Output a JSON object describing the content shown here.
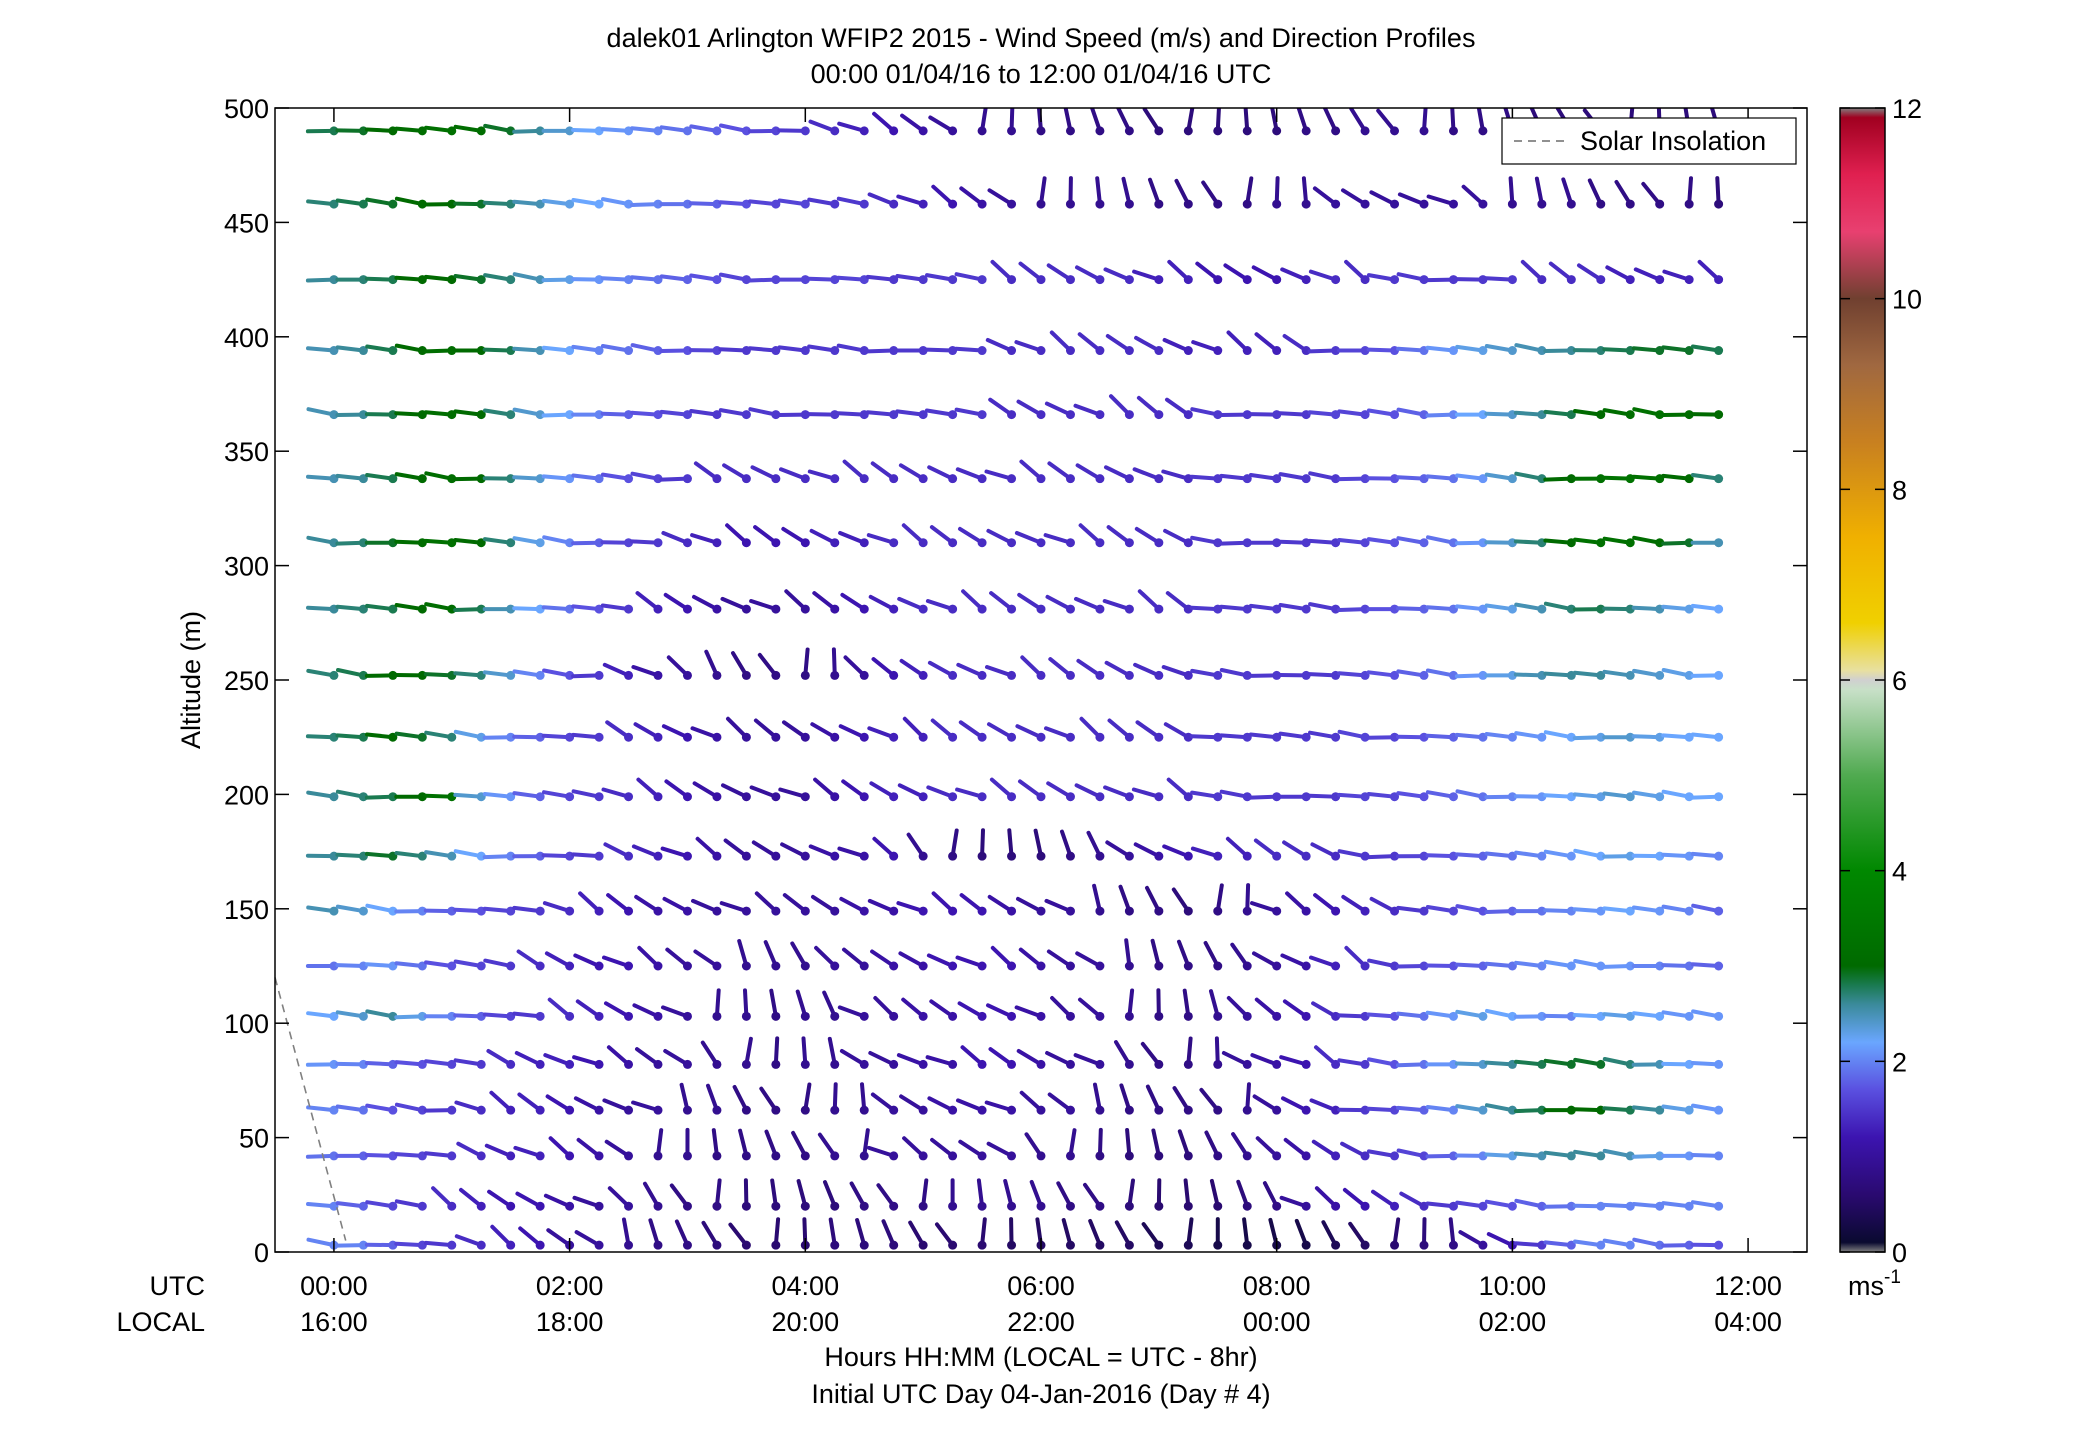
{
  "chart_data": {
    "type": "wind_barb_profile",
    "title_line1": "dalek01 Arlington WFIP2 2015 - Wind Speed (m/s) and Direction Profiles",
    "title_line2": "00:00 01/04/16 to 12:00 01/04/16  UTC",
    "ylabel": "Altitude (m)",
    "ylim": [
      0,
      500
    ],
    "y_ticks": [
      "0",
      "50",
      "100",
      "150",
      "200",
      "250",
      "300",
      "350",
      "400",
      "450",
      "500"
    ],
    "xlim_hours": [
      -0.5,
      12.5
    ],
    "utc_label": "UTC",
    "local_label": "LOCAL",
    "utc_ticks": [
      "00:00",
      "02:00",
      "04:00",
      "06:00",
      "08:00",
      "10:00",
      "12:00"
    ],
    "local_ticks": [
      "16:00",
      "18:00",
      "20:00",
      "22:00",
      "00:00",
      "02:00",
      "04:00"
    ],
    "xlabel_line1": "Hours HH:MM  (LOCAL = UTC - 8hr)",
    "xlabel_line2": "Initial UTC Day 04-Jan-2016 (Day # 4)",
    "legend": {
      "entry": "Solar Insolation",
      "style": "dashed",
      "color": "#808080",
      "placement": "top-right"
    },
    "solar_insolation": {
      "x": [
        -0.5,
        0.1
      ],
      "y": [
        120,
        5
      ]
    },
    "colorbar": {
      "range": [
        0,
        12
      ],
      "ticks": [
        "0",
        "2",
        "4",
        "6",
        "8",
        "10",
        "12"
      ],
      "unit": "ms",
      "unit_superscript": "-1",
      "stops": [
        [
          0.0,
          "#808080"
        ],
        [
          0.1,
          "#0a0a30"
        ],
        [
          0.6,
          "#2a0a70"
        ],
        [
          1.2,
          "#3c14b0"
        ],
        [
          1.7,
          "#5a50e0"
        ],
        [
          2.2,
          "#6aa6ff"
        ],
        [
          2.6,
          "#3a8a9a"
        ],
        [
          2.8,
          "#1a7a50"
        ],
        [
          3.0,
          "#006a00"
        ],
        [
          4.0,
          "#008800"
        ],
        [
          5.0,
          "#50aa50"
        ],
        [
          5.9,
          "#c8e0c8"
        ],
        [
          6.0,
          "#d0d0d0"
        ],
        [
          6.1,
          "#e8e0a0"
        ],
        [
          6.6,
          "#f0d000"
        ],
        [
          7.5,
          "#f0b000"
        ],
        [
          8.5,
          "#c88020"
        ],
        [
          9.3,
          "#a06840"
        ],
        [
          10.0,
          "#704030"
        ],
        [
          10.7,
          "#e84070"
        ],
        [
          11.3,
          "#e02050"
        ],
        [
          11.9,
          "#a00020"
        ],
        [
          12.0,
          "#808080"
        ]
      ]
    },
    "altitudes_m": [
      3,
      20,
      42,
      62,
      82,
      103,
      125,
      149,
      173,
      199,
      225,
      252,
      281,
      310,
      338,
      366,
      394,
      425,
      458,
      490
    ],
    "times_h": [
      0,
      0.25,
      0.5,
      0.75,
      1,
      1.25,
      1.5,
      1.75,
      2,
      2.25,
      2.5,
      2.75,
      3,
      3.25,
      3.5,
      3.75,
      4,
      4.25,
      4.5,
      4.75,
      5,
      5.25,
      5.5,
      5.75,
      6,
      6.25,
      6.5,
      6.75,
      7,
      7.25,
      7.5,
      7.75,
      8,
      8.25,
      8.5,
      8.75,
      9,
      9.25,
      9.5,
      9.75,
      10,
      10.25,
      10.5,
      10.75,
      11,
      11.25,
      11.5,
      11.75
    ],
    "approx_speed_ms": {
      "note_rows": "one entry per altitude level, one value per time step",
      "z3": [
        2.0,
        2.0,
        1.8,
        1.6,
        1.5,
        1.4,
        1.3,
        1.2,
        1.0,
        1.0,
        0.9,
        0.8,
        0.8,
        0.7,
        0.6,
        0.6,
        0.6,
        0.7,
        0.7,
        0.7,
        0.6,
        0.6,
        0.6,
        0.5,
        0.5,
        0.5,
        0.5,
        0.5,
        0.4,
        0.4,
        0.3,
        0.3,
        0.3,
        0.3,
        0.4,
        0.5,
        0.6,
        0.7,
        0.8,
        1.0,
        1.2,
        1.5,
        1.8,
        2.0,
        2.0,
        1.9,
        1.8,
        1.7
      ],
      "z20": [
        2.0,
        1.8,
        1.6,
        1.5,
        1.4,
        1.3,
        1.2,
        1.2,
        1.1,
        1.0,
        1.0,
        0.9,
        0.8,
        0.8,
        0.7,
        0.7,
        0.7,
        0.7,
        0.8,
        0.8,
        0.8,
        0.9,
        0.9,
        0.9,
        0.9,
        0.8,
        0.8,
        0.7,
        0.6,
        0.6,
        0.6,
        0.7,
        0.8,
        1.0,
        1.1,
        1.2,
        1.3,
        1.4,
        1.5,
        1.6,
        1.7,
        1.8,
        1.9,
        2.0,
        2.0,
        2.0,
        2.0,
        2.0
      ],
      "z42": [
        1.9,
        1.8,
        1.7,
        1.6,
        1.5,
        1.4,
        1.3,
        1.3,
        1.2,
        1.1,
        1.0,
        0.9,
        0.9,
        0.8,
        0.8,
        0.8,
        0.8,
        0.9,
        0.9,
        1.0,
        1.0,
        1.0,
        1.0,
        1.0,
        0.9,
        0.9,
        0.8,
        0.7,
        0.7,
        0.7,
        0.8,
        0.9,
        1.0,
        1.1,
        1.3,
        1.4,
        1.5,
        1.6,
        1.8,
        2.0,
        2.3,
        2.5,
        2.6,
        2.6,
        2.5,
        2.3,
        2.1,
        2.0
      ],
      "z62": [
        2.0,
        1.9,
        1.7,
        1.6,
        1.5,
        1.4,
        1.3,
        1.3,
        1.2,
        1.1,
        1.0,
        1.0,
        0.9,
        0.9,
        0.8,
        0.8,
        0.8,
        0.9,
        0.9,
        1.0,
        1.0,
        1.1,
        1.1,
        1.1,
        1.0,
        1.0,
        0.9,
        0.8,
        0.8,
        0.8,
        0.8,
        0.9,
        1.0,
        1.2,
        1.3,
        1.5,
        1.6,
        1.8,
        2.0,
        2.4,
        2.6,
        2.8,
        3.0,
        3.0,
        2.8,
        2.6,
        2.3,
        2.1
      ],
      "z82": [
        2.1,
        2.0,
        1.8,
        1.7,
        1.6,
        1.5,
        1.4,
        1.3,
        1.3,
        1.2,
        1.1,
        1.0,
        1.0,
        0.9,
        0.9,
        0.8,
        0.9,
        0.9,
        1.0,
        1.0,
        1.1,
        1.1,
        1.2,
        1.2,
        1.1,
        1.0,
        1.0,
        0.9,
        0.8,
        0.8,
        0.9,
        1.0,
        1.1,
        1.2,
        1.4,
        1.5,
        1.7,
        1.9,
        2.1,
        2.4,
        2.6,
        2.8,
        2.9,
        2.9,
        2.7,
        2.5,
        2.2,
        2.1
      ],
      "z103": [
        2.2,
        2.4,
        2.6,
        2.3,
        2.0,
        1.8,
        1.6,
        1.5,
        1.4,
        1.3,
        1.2,
        1.1,
        1.0,
        0.9,
        0.9,
        0.8,
        0.9,
        0.9,
        1.0,
        1.0,
        1.1,
        1.1,
        1.2,
        1.2,
        1.1,
        1.0,
        1.0,
        0.9,
        0.8,
        0.8,
        0.9,
        1.0,
        1.1,
        1.2,
        1.4,
        1.5,
        1.7,
        1.9,
        2.1,
        2.3,
        2.2,
        2.1,
        2.0,
        2.2,
        2.3,
        2.2,
        2.1,
        2.1
      ],
      "z125": [
        1.9,
        2.0,
        2.1,
        1.9,
        1.7,
        1.6,
        1.5,
        1.4,
        1.3,
        1.2,
        1.2,
        1.1,
        1.0,
        1.0,
        0.9,
        0.9,
        0.9,
        1.0,
        1.0,
        1.1,
        1.1,
        1.2,
        1.2,
        1.2,
        1.1,
        1.0,
        1.0,
        0.9,
        0.8,
        0.8,
        0.8,
        0.9,
        1.0,
        1.1,
        1.3,
        1.4,
        1.5,
        1.6,
        1.7,
        1.8,
        1.9,
        2.0,
        2.1,
        2.1,
        2.1,
        2.0,
        1.9,
        1.8
      ],
      "z149": [
        2.5,
        2.4,
        2.2,
        2.0,
        1.8,
        1.7,
        1.6,
        1.5,
        1.4,
        1.3,
        1.2,
        1.1,
        1.1,
        1.0,
        1.0,
        1.0,
        1.0,
        1.0,
        1.1,
        1.1,
        1.2,
        1.2,
        1.2,
        1.1,
        1.0,
        1.0,
        0.9,
        0.8,
        0.8,
        0.7,
        0.8,
        0.9,
        1.0,
        1.1,
        1.2,
        1.3,
        1.4,
        1.5,
        1.6,
        1.7,
        1.8,
        1.9,
        2.0,
        2.1,
        2.2,
        2.1,
        2.0,
        1.8
      ],
      "z173": [
        2.6,
        2.7,
        2.9,
        2.7,
        2.5,
        2.2,
        2.0,
        1.8,
        1.6,
        1.5,
        1.4,
        1.3,
        1.2,
        1.1,
        1.0,
        1.0,
        1.0,
        1.1,
        1.1,
        1.2,
        0.9,
        0.8,
        0.7,
        0.7,
        0.7,
        0.8,
        0.9,
        1.0,
        1.1,
        1.2,
        1.3,
        1.3,
        1.4,
        1.4,
        1.4,
        1.5,
        1.5,
        1.6,
        1.7,
        1.8,
        1.9,
        2.0,
        2.1,
        2.2,
        2.3,
        2.2,
        2.1,
        2.0
      ],
      "z199": [
        2.6,
        2.7,
        2.8,
        3.0,
        3.2,
        2.4,
        2.1,
        1.8,
        1.6,
        1.5,
        1.4,
        1.3,
        1.2,
        1.1,
        1.0,
        1.0,
        1.0,
        1.1,
        1.2,
        1.3,
        1.3,
        1.4,
        1.4,
        1.4,
        1.4,
        1.4,
        1.4,
        1.4,
        1.4,
        1.4,
        1.5,
        1.5,
        1.5,
        1.5,
        1.5,
        1.6,
        1.6,
        1.7,
        1.8,
        1.9,
        2.0,
        2.1,
        2.2,
        2.3,
        2.4,
        2.3,
        2.2,
        2.2
      ],
      "z225": [
        2.7,
        2.8,
        3.0,
        2.9,
        2.7,
        2.3,
        2.0,
        1.8,
        1.6,
        1.5,
        1.4,
        1.3,
        1.2,
        1.1,
        1.0,
        1.0,
        1.0,
        1.1,
        1.2,
        1.3,
        1.3,
        1.4,
        1.4,
        1.4,
        1.4,
        1.4,
        1.4,
        1.4,
        1.4,
        1.4,
        1.5,
        1.5,
        1.5,
        1.5,
        1.5,
        1.6,
        1.6,
        1.7,
        1.8,
        1.9,
        2.0,
        2.1,
        2.2,
        2.3,
        2.4,
        2.3,
        2.2,
        2.2
      ],
      "z252": [
        2.7,
        2.8,
        3.0,
        3.0,
        2.9,
        2.7,
        2.4,
        2.0,
        1.7,
        1.5,
        1.3,
        1.1,
        1.0,
        0.9,
        0.8,
        0.8,
        0.8,
        0.9,
        1.0,
        1.2,
        1.3,
        1.4,
        1.4,
        1.4,
        1.4,
        1.4,
        1.4,
        1.4,
        1.4,
        1.4,
        1.5,
        1.5,
        1.5,
        1.5,
        1.5,
        1.6,
        1.7,
        1.8,
        1.9,
        2.1,
        2.3,
        2.5,
        2.6,
        2.6,
        2.5,
        2.4,
        2.3,
        2.2
      ],
      "z281": [
        2.6,
        2.7,
        2.8,
        3.0,
        3.1,
        2.8,
        2.5,
        2.2,
        1.9,
        1.7,
        1.5,
        1.3,
        1.2,
        1.1,
        1.0,
        1.0,
        1.0,
        1.1,
        1.2,
        1.3,
        1.4,
        1.4,
        1.4,
        1.4,
        1.4,
        1.4,
        1.4,
        1.4,
        1.4,
        1.4,
        1.5,
        1.5,
        1.5,
        1.5,
        1.5,
        1.6,
        1.7,
        1.8,
        1.9,
        2.1,
        2.3,
        2.5,
        2.7,
        2.8,
        2.7,
        2.5,
        2.3,
        2.2
      ],
      "z310": [
        2.6,
        2.7,
        2.9,
        3.1,
        3.2,
        3.0,
        2.7,
        2.3,
        2.0,
        1.8,
        1.6,
        1.5,
        1.4,
        1.3,
        1.2,
        1.2,
        1.2,
        1.3,
        1.3,
        1.4,
        1.4,
        1.4,
        1.4,
        1.4,
        1.4,
        1.4,
        1.4,
        1.4,
        1.4,
        1.4,
        1.5,
        1.5,
        1.5,
        1.5,
        1.5,
        1.6,
        1.7,
        1.8,
        1.9,
        2.1,
        2.4,
        2.7,
        3.0,
        3.2,
        3.2,
        3.1,
        2.9,
        2.5
      ],
      "z338": [
        2.5,
        2.6,
        2.8,
        3.0,
        3.1,
        3.0,
        2.7,
        2.4,
        2.1,
        1.9,
        1.7,
        1.6,
        1.5,
        1.4,
        1.4,
        1.4,
        1.4,
        1.4,
        1.4,
        1.4,
        1.4,
        1.4,
        1.4,
        1.4,
        1.4,
        1.4,
        1.4,
        1.4,
        1.4,
        1.4,
        1.5,
        1.5,
        1.5,
        1.5,
        1.5,
        1.6,
        1.7,
        1.8,
        1.9,
        2.1,
        2.4,
        2.7,
        3.0,
        3.2,
        3.3,
        3.2,
        3.0,
        2.7
      ],
      "z366": [
        2.5,
        2.6,
        2.8,
        3.0,
        3.1,
        3.0,
        2.7,
        2.4,
        2.2,
        2.0,
        1.8,
        1.7,
        1.6,
        1.5,
        1.5,
        1.5,
        1.5,
        1.5,
        1.5,
        1.5,
        1.5,
        1.5,
        1.5,
        1.4,
        1.4,
        1.4,
        1.4,
        1.4,
        1.4,
        1.4,
        1.5,
        1.5,
        1.5,
        1.5,
        1.6,
        1.6,
        1.7,
        1.8,
        2.0,
        2.2,
        2.4,
        2.6,
        2.8,
        3.0,
        3.1,
        3.2,
        3.1,
        3.0
      ],
      "z394": [
        2.5,
        2.6,
        2.8,
        3.0,
        3.1,
        3.0,
        2.8,
        2.5,
        2.2,
        2.0,
        1.9,
        1.8,
        1.7,
        1.6,
        1.5,
        1.5,
        1.5,
        1.5,
        1.5,
        1.5,
        1.5,
        1.5,
        1.5,
        1.4,
        1.4,
        1.4,
        1.4,
        1.4,
        1.4,
        1.3,
        1.3,
        1.3,
        1.3,
        1.4,
        1.5,
        1.6,
        1.7,
        1.9,
        2.1,
        2.3,
        2.4,
        2.5,
        2.6,
        2.7,
        2.8,
        2.9,
        2.9,
        2.8
      ],
      "z425": [
        2.6,
        2.7,
        2.8,
        3.0,
        3.0,
        2.9,
        2.7,
        2.5,
        2.3,
        2.1,
        2.0,
        1.9,
        1.8,
        1.7,
        1.6,
        1.6,
        1.6,
        1.6,
        1.6,
        1.5,
        1.5,
        1.5,
        1.5,
        1.4,
        1.4,
        1.4,
        1.4,
        1.4,
        1.3,
        1.3,
        1.2,
        1.2,
        1.2,
        1.3,
        1.4,
        1.4,
        1.5,
        1.5,
        1.5,
        1.5,
        1.5,
        1.4,
        1.4,
        1.4,
        1.3,
        1.3,
        1.3,
        1.3
      ],
      "z458": [
        2.7,
        2.8,
        2.9,
        3.0,
        3.0,
        2.9,
        2.7,
        2.5,
        2.3,
        2.2,
        2.1,
        2.0,
        1.9,
        1.8,
        1.7,
        1.6,
        1.6,
        1.5,
        1.5,
        1.4,
        1.3,
        1.2,
        1.1,
        1.0,
        0.9,
        0.9,
        0.9,
        0.9,
        0.8,
        0.8,
        0.8,
        0.8,
        0.9,
        0.9,
        1.0,
        1.0,
        1.0,
        1.0,
        1.0,
        1.0,
        0.9,
        0.9,
        0.9,
        0.8,
        0.8,
        0.8,
        0.8,
        0.7
      ],
      "z490": [
        2.8,
        2.9,
        3.0,
        3.1,
        3.2,
        3.1,
        2.9,
        2.6,
        2.4,
        2.2,
        2.1,
        2.0,
        1.9,
        1.8,
        1.7,
        1.6,
        1.5,
        1.4,
        1.3,
        1.2,
        1.1,
        1.0,
        0.9,
        0.9,
        0.8,
        0.8,
        0.8,
        0.8,
        0.7,
        0.7,
        0.7,
        0.7,
        0.7,
        0.8,
        0.8,
        0.9,
        0.9,
        0.9,
        0.8,
        0.8,
        0.8,
        0.7,
        0.7,
        0.7,
        0.7,
        0.7,
        0.7,
        0.7
      ]
    }
  }
}
